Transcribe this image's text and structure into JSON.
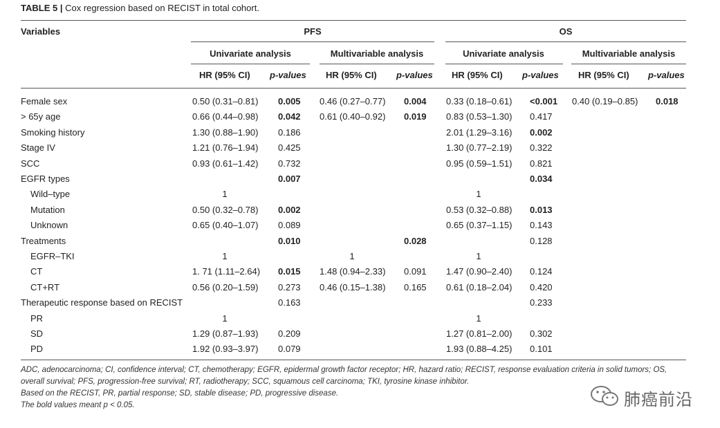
{
  "caption": {
    "label": "TABLE 5 |",
    "text": "Cox regression based on RECIST in total cohort."
  },
  "headers": {
    "variables": "Variables",
    "pfs": "PFS",
    "os": "OS",
    "univariate": "Univariate analysis",
    "multivariable": "Multivariable analysis",
    "hr": "HR (95% CI)",
    "pval": "p-values"
  },
  "rows": [
    {
      "label": "Female sex",
      "indent": false,
      "c1": "0.50 (0.31–0.81)",
      "c2": "0.005",
      "c2b": true,
      "c3": "0.46 (0.27–0.77)",
      "c4": "0.004",
      "c4b": true,
      "c5": "0.33 (0.18–0.61)",
      "c6": "<0.001",
      "c6b": true,
      "c7": "0.40 (0.19–0.85)",
      "c8": "0.018",
      "c8b": true
    },
    {
      "label": "> 65y age",
      "indent": false,
      "c1": "0.66 (0.44–0.98)",
      "c2": "0.042",
      "c2b": true,
      "c3": "0.61 (0.40–0.92)",
      "c4": "0.019",
      "c4b": true,
      "c5": "0.83 (0.53–1.30)",
      "c6": "0.417",
      "c6b": false,
      "c7": "",
      "c8": "",
      "c8b": false
    },
    {
      "label": "Smoking history",
      "indent": false,
      "c1": "1.30 (0.88–1.90)",
      "c2": "0.186",
      "c2b": false,
      "c3": "",
      "c4": "",
      "c4b": false,
      "c5": "2.01 (1.29–3.16)",
      "c6": "0.002",
      "c6b": true,
      "c7": "",
      "c8": "",
      "c8b": false
    },
    {
      "label": "Stage IV",
      "indent": false,
      "c1": "1.21 (0.76–1.94)",
      "c2": "0.425",
      "c2b": false,
      "c3": "",
      "c4": "",
      "c4b": false,
      "c5": "1.30 (0.77–2.19)",
      "c6": "0.322",
      "c6b": false,
      "c7": "",
      "c8": "",
      "c8b": false
    },
    {
      "label": "SCC",
      "indent": false,
      "c1": "0.93 (0.61–1.42)",
      "c2": "0.732",
      "c2b": false,
      "c3": "",
      "c4": "",
      "c4b": false,
      "c5": "0.95 (0.59–1.51)",
      "c6": "0.821",
      "c6b": false,
      "c7": "",
      "c8": "",
      "c8b": false
    },
    {
      "label": "EGFR types",
      "indent": false,
      "c1": "",
      "c2": "0.007",
      "c2b": true,
      "c3": "",
      "c4": "",
      "c4b": false,
      "c5": "",
      "c6": "0.034",
      "c6b": true,
      "c7": "",
      "c8": "",
      "c8b": false
    },
    {
      "label": "Wild–type",
      "indent": true,
      "c1": "1",
      "c1c": true,
      "c2": "",
      "c2b": false,
      "c3": "",
      "c4": "",
      "c4b": false,
      "c5": "1",
      "c5c": true,
      "c6": "",
      "c6b": false,
      "c7": "",
      "c8": "",
      "c8b": false
    },
    {
      "label": "Mutation",
      "indent": true,
      "c1": "0.50 (0.32–0.78)",
      "c2": "0.002",
      "c2b": true,
      "c3": "",
      "c4": "",
      "c4b": false,
      "c5": "0.53 (0.32–0.88)",
      "c6": "0.013",
      "c6b": true,
      "c7": "",
      "c8": "",
      "c8b": false
    },
    {
      "label": "Unknown",
      "indent": true,
      "c1": "0.65 (0.40–1.07)",
      "c2": "0.089",
      "c2b": false,
      "c3": "",
      "c4": "",
      "c4b": false,
      "c5": "0.65 (0.37–1.15)",
      "c6": "0.143",
      "c6b": false,
      "c7": "",
      "c8": "",
      "c8b": false
    },
    {
      "label": "Treatments",
      "indent": false,
      "c1": "",
      "c2": "0.010",
      "c2b": true,
      "c3": "",
      "c4": "0.028",
      "c4b": true,
      "c5": "",
      "c6": "0.128",
      "c6b": false,
      "c7": "",
      "c8": "",
      "c8b": false
    },
    {
      "label": "EGFR–TKI",
      "indent": true,
      "c1": "1",
      "c1c": true,
      "c2": "",
      "c2b": false,
      "c3": "1",
      "c3c": true,
      "c4": "",
      "c4b": false,
      "c5": "1",
      "c5c": true,
      "c6": "",
      "c6b": false,
      "c7": "",
      "c8": "",
      "c8b": false
    },
    {
      "label": "CT",
      "indent": true,
      "c1": "1. 71 (1.11–2.64)",
      "c2": "0.015",
      "c2b": true,
      "c3": "1.48 (0.94–2.33)",
      "c4": "0.091",
      "c4b": false,
      "c5": "1.47 (0.90–2.40)",
      "c6": "0.124",
      "c6b": false,
      "c7": "",
      "c8": "",
      "c8b": false
    },
    {
      "label": "CT+RT",
      "indent": true,
      "c1": "0.56 (0.20–1.59)",
      "c2": "0.273",
      "c2b": false,
      "c3": "0.46 (0.15–1.38)",
      "c4": "0.165",
      "c4b": false,
      "c5": "0.61 (0.18–2.04)",
      "c6": "0.420",
      "c6b": false,
      "c7": "",
      "c8": "",
      "c8b": false
    },
    {
      "label": "Therapeutic response based on RECIST",
      "indent": false,
      "c1": "",
      "c2": "0.163",
      "c2b": false,
      "c3": "",
      "c4": "",
      "c4b": false,
      "c5": "",
      "c6": "0.233",
      "c6b": false,
      "c7": "",
      "c8": "",
      "c8b": false
    },
    {
      "label": "PR",
      "indent": true,
      "c1": "1",
      "c1c": true,
      "c2": "",
      "c2b": false,
      "c3": "",
      "c4": "",
      "c4b": false,
      "c5": "1",
      "c5c": true,
      "c6": "",
      "c6b": false,
      "c7": "",
      "c8": "",
      "c8b": false
    },
    {
      "label": "SD",
      "indent": true,
      "c1": "1.29 (0.87–1.93)",
      "c2": "0.209",
      "c2b": false,
      "c3": "",
      "c4": "",
      "c4b": false,
      "c5": "1.27 (0.81–2.00)",
      "c6": "0.302",
      "c6b": false,
      "c7": "",
      "c8": "",
      "c8b": false
    },
    {
      "label": "PD",
      "indent": true,
      "c1": "1.92 (0.93–3.97)",
      "c2": "0.079",
      "c2b": false,
      "c3": "",
      "c4": "",
      "c4b": false,
      "c5": "1.93 (0.88–4.25)",
      "c6": "0.101",
      "c6b": false,
      "c7": "",
      "c8": "",
      "c8b": false
    }
  ],
  "footnotes": [
    "ADC, adenocarcinoma; CI, confidence interval; CT, chemotherapy; EGFR, epidermal growth factor receptor; HR, hazard ratio; RECIST, response evaluation criteria in solid tumors; OS,",
    "overall survival; PFS, progression-free survival; RT, radiotherapy; SCC, squamous cell carcinoma; TKI, tyrosine kinase inhibitor.",
    "Based on the RECIST, PR, partial response; SD, stable disease; PD, progressive disease.",
    "The bold values meant p < 0.05."
  ],
  "watermark": {
    "text": "肺癌前沿",
    "icon": "wechat-icon"
  }
}
